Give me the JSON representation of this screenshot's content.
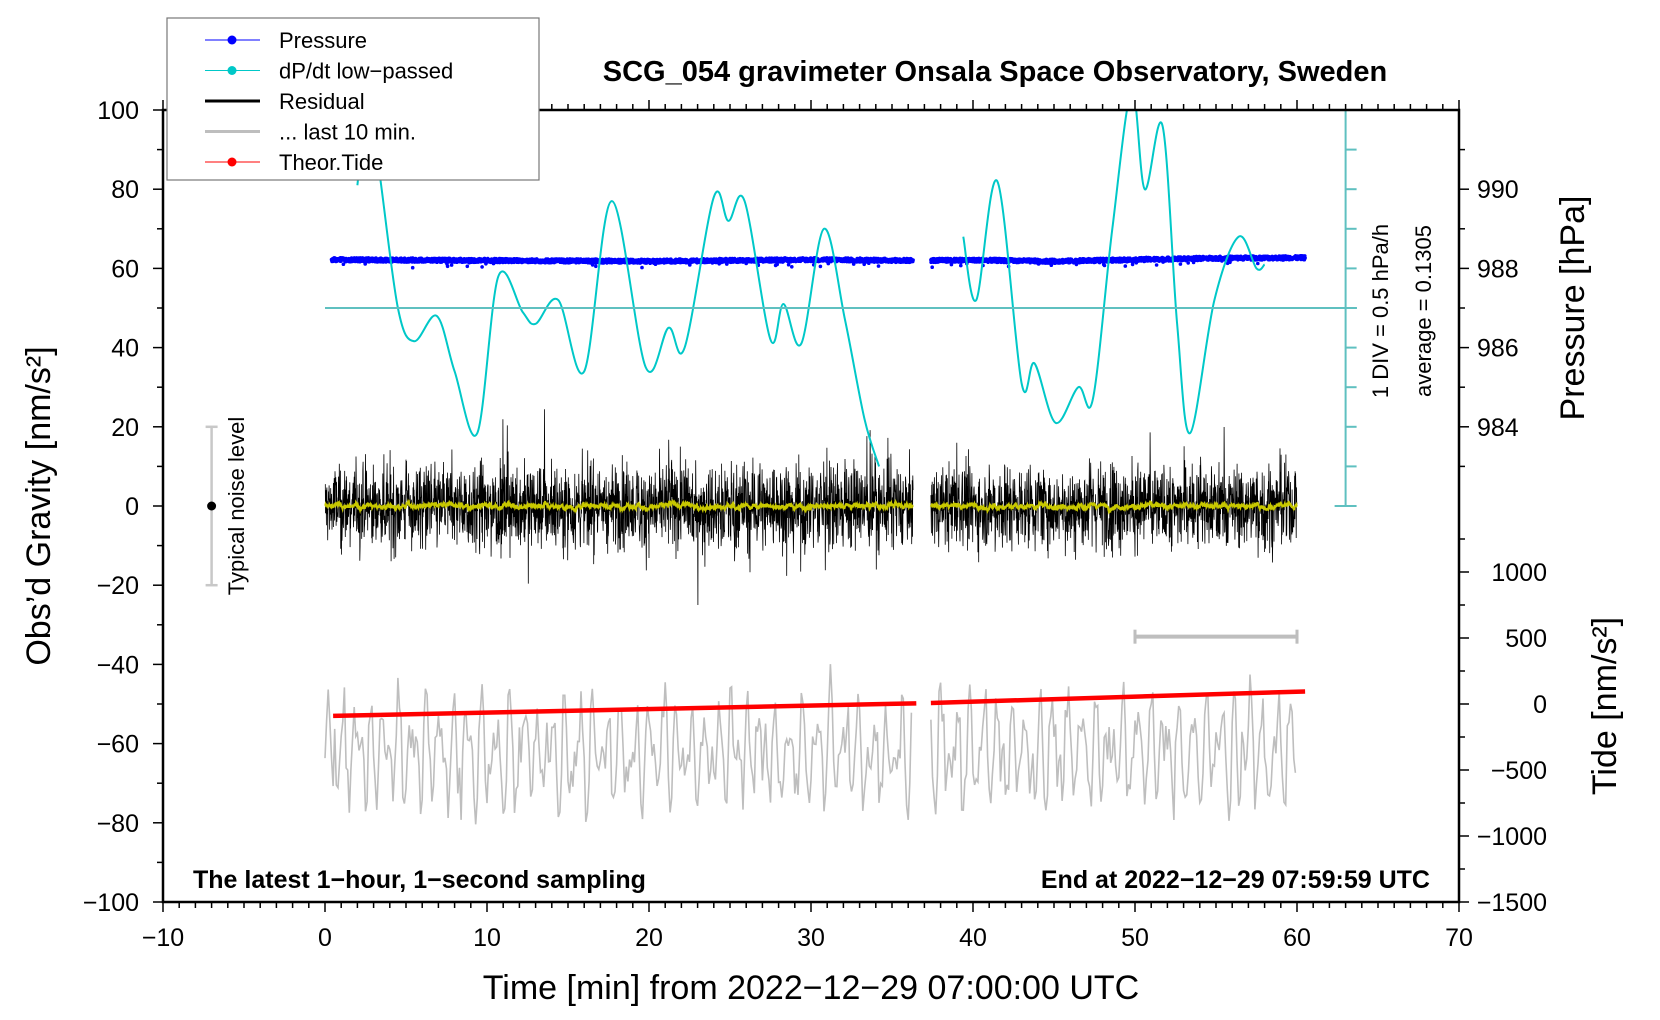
{
  "chart_data": {
    "type": "line",
    "title": "SCG_054 gravimeter Onsala Space Observatory, Sweden",
    "xlabel": "Time [min] from 2022−12−29 07:00:00 UTC",
    "ylabel_left": "Obs’d Gravity [nm/s²]",
    "ylabel_right_pressure": "Pressure [hPa]",
    "ylabel_right_tide": "Tide [nm/s²]",
    "xlim": [
      -10,
      70
    ],
    "ylim": [
      -100,
      100
    ],
    "x_ticks": [
      "−10",
      "0",
      "10",
      "20",
      "30",
      "40",
      "50",
      "60",
      "70"
    ],
    "y_ticks": [
      "100",
      "80",
      "60",
      "40",
      "20",
      "0",
      "−20",
      "−40",
      "−60",
      "−80",
      "−100"
    ],
    "pressure_ticks": [
      "990",
      "988",
      "986",
      "984"
    ],
    "tide_ticks": [
      "1000",
      "500",
      "0",
      "−500",
      "−1000",
      "−1500"
    ],
    "legend": {
      "placement": "top-left",
      "entries": [
        {
          "label": "Pressure",
          "color": "#0000ff"
        },
        {
          "label": "dP/dt low−passed",
          "color": "#00c8c8"
        },
        {
          "label": "Residual",
          "color": "#000000"
        },
        {
          "label": "... last 10 min.",
          "color": "#bebebe"
        },
        {
          "label": "Theor.Tide",
          "color": "#ff0000"
        }
      ]
    },
    "annotations": {
      "left_note": "The latest 1−hour, 1−second sampling",
      "right_note": "End at 2022−12−29 07:59:59 UTC",
      "dpdt_scale": "1 DIV = 0.5 hPa/h",
      "dpdt_average": "average = 0.1305",
      "noise_label": "Typical noise level"
    },
    "noise_level_range": [
      -20,
      20
    ],
    "gap_minutes": [
      36.3,
      37.4
    ],
    "pressure_hpa": {
      "segments": [
        {
          "t": [
            0.4,
            5,
            10,
            15,
            20,
            25,
            30,
            36.3
          ],
          "p": [
            988.22,
            988.21,
            988.2,
            988.19,
            988.18,
            988.2,
            988.22,
            988.2
          ]
        },
        {
          "t": [
            37.4,
            40,
            45,
            50,
            55,
            60.5
          ],
          "p": [
            988.2,
            988.21,
            988.18,
            988.22,
            988.26,
            988.27
          ]
        }
      ],
      "scatter_hpa": 0.1
    },
    "dpdt_hpa_per_h": {
      "zero_reference": 0,
      "segments": [
        {
          "t": [
            2.0,
            2.6,
            3.3,
            4.5,
            5.5,
            6.9,
            8.0,
            9.4,
            10.7,
            12.2,
            13.0,
            14.4,
            16.0,
            17.7,
            19.8,
            21.2,
            22.2,
            24.0,
            24.9,
            25.9,
            27.5,
            28.3,
            29.4,
            30.8,
            32.1,
            33.3,
            34.2
          ],
          "v": [
            1.55,
            2.6,
            1.8,
            0.0,
            -0.42,
            -0.1,
            -0.8,
            -1.58,
            0.4,
            -0.05,
            -0.2,
            0.1,
            -0.8,
            1.35,
            -0.75,
            -0.25,
            -0.5,
            1.4,
            1.1,
            1.35,
            -0.4,
            0.05,
            -0.45,
            1.0,
            -0.15,
            -1.4,
            -2.0
          ]
        },
        {
          "t": [
            39.4,
            40.2,
            41.5,
            43.0,
            43.8,
            45.1,
            46.5,
            47.4,
            48.6,
            49.8,
            50.6,
            51.7,
            52.6,
            53.4,
            54.9,
            56.4,
            57.5,
            58.0
          ],
          "v": [
            0.9,
            0.1,
            1.6,
            -0.95,
            -0.7,
            -1.45,
            -1.0,
            -1.15,
            1.0,
            2.75,
            1.5,
            2.3,
            -0.2,
            -1.58,
            0.1,
            0.9,
            0.5,
            0.55
          ]
        }
      ]
    },
    "residual_nm_s2": {
      "mean": 0,
      "std": 9,
      "range": [
        -37,
        33
      ],
      "smoothed_amplitude": 2
    },
    "last_10_min_window": [
      50,
      60
    ],
    "theoretical_tide_nm_s2": {
      "segments": [
        {
          "t": [
            0.5,
            36.5
          ],
          "tide": [
            -90,
            5
          ]
        },
        {
          "t": [
            37.4,
            60.5
          ],
          "tide": [
            8,
            95
          ]
        }
      ]
    }
  }
}
